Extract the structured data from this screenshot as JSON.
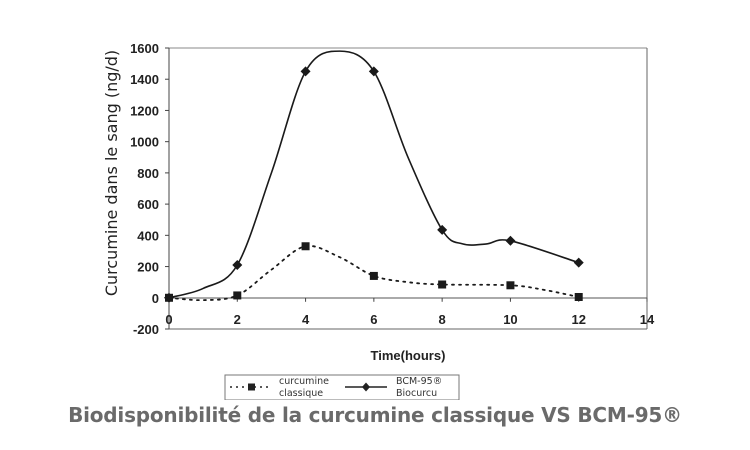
{
  "caption": "Biodisponibilité de la curcumine classique VS BCM-95®",
  "colors": {
    "line": "#1a1a1a",
    "axis": "#555555",
    "caption": "#6a6a6a"
  },
  "chart_data": {
    "type": "line",
    "title": "Biodisponibilité de la curcumine classique VS BCM-95®",
    "xlabel": "Time(hours)",
    "ylabel": "Curcumine dans le sang (ng/d)",
    "x": [
      0,
      2,
      4,
      6,
      8,
      10,
      12
    ],
    "xlim": [
      0,
      14
    ],
    "ylim": [
      -200,
      1600
    ],
    "xticks": [
      0,
      2,
      4,
      6,
      8,
      10,
      12,
      14
    ],
    "yticks": [
      -200,
      0,
      200,
      400,
      600,
      800,
      1000,
      1200,
      1400,
      1600
    ],
    "grid": false,
    "legend_position": "bottom",
    "series": [
      {
        "name": "curcumine classique",
        "style": "dotted",
        "marker": "square",
        "values": [
          0,
          15,
          330,
          140,
          85,
          80,
          5
        ]
      },
      {
        "name": "BCM-95® Biocurcu",
        "style": "solid",
        "marker": "diamond",
        "values": [
          0,
          210,
          1450,
          1450,
          435,
          365,
          225
        ],
        "annotations": {
          "peak_estimate": {
            "x": 5,
            "y": 1580
          }
        }
      }
    ],
    "legend": [
      {
        "line1": "curcumine",
        "line2": "classique"
      },
      {
        "line1": "BCM-95®",
        "line2": "Biocurcu"
      }
    ]
  }
}
